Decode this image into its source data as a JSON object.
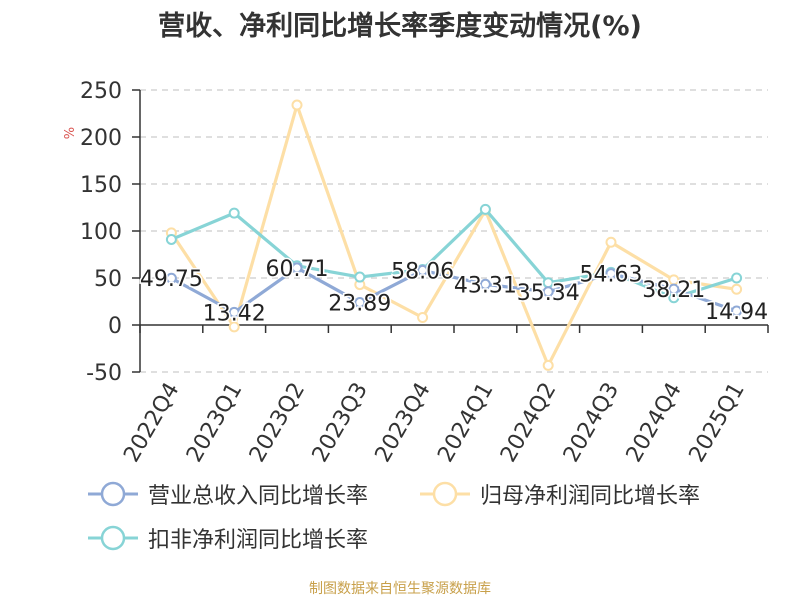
{
  "chart_data": {
    "type": "line",
    "title": "营收、净利同比增长率季度变动情况(%)",
    "ylabel": "%",
    "ylim": [
      -50,
      250
    ],
    "yticks": [
      -50,
      0,
      50,
      100,
      150,
      200,
      250
    ],
    "categories": [
      "2022Q4",
      "2023Q1",
      "2023Q2",
      "2023Q3",
      "2023Q4",
      "2024Q1",
      "2024Q2",
      "2024Q3",
      "2024Q4",
      "2025Q1"
    ],
    "grid": true,
    "legend_position": "bottom",
    "series": [
      {
        "name": "营业总收入同比增长率",
        "color": "#8fa9d6",
        "values": [
          49.75,
          13.42,
          60.71,
          23.89,
          58.06,
          43.31,
          35.34,
          54.63,
          38.21,
          14.94
        ],
        "labels": [
          "49.75",
          "13.42",
          "60.71",
          "23.89",
          "58.06",
          "43.31",
          "35.34",
          "54.63",
          "38.21",
          "14.94"
        ]
      },
      {
        "name": "归母净利润同比增长率",
        "color": "#fddfa6",
        "values": [
          98,
          -2,
          234,
          43,
          8,
          122,
          -43,
          88,
          48,
          38
        ]
      },
      {
        "name": "扣非净利润同比增长率",
        "color": "#87d4d6",
        "values": [
          91,
          119,
          63,
          51,
          59,
          123,
          45,
          56,
          29,
          50
        ]
      }
    ]
  },
  "footer": {
    "source": "制图数据来自恒生聚源数据库"
  }
}
